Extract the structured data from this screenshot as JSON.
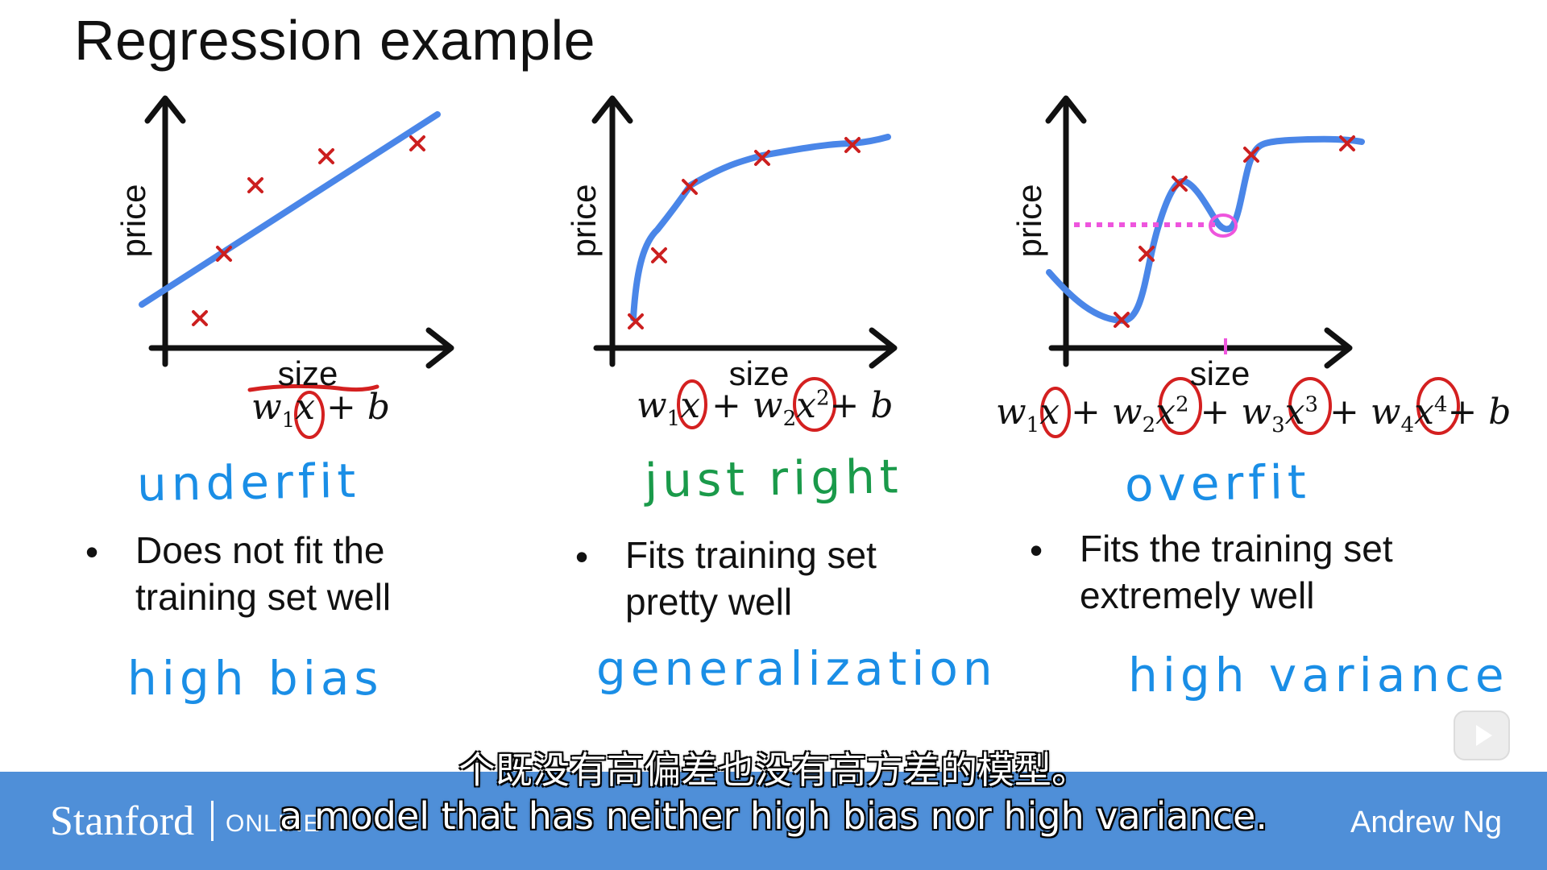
{
  "slide": {
    "title": "Regression example",
    "colors": {
      "curve": "#4a86e8",
      "marker": "#cc1f1f",
      "circle": "#d42020",
      "underfit": "#1a8ee6",
      "just_right": "#1a9a4a",
      "overfit": "#1a8ee6",
      "pink": "#ee55dd",
      "footer": "#4f8fd8"
    },
    "panels": [
      {
        "ylabel": "price",
        "xlabel": "size",
        "formula": {
          "parts": [
            "w",
            "1",
            "x",
            "+ b"
          ]
        },
        "verdict": "underfit",
        "bullet_line1": "Does not fit the",
        "bullet_line2": "training set well",
        "note": "high  bias"
      },
      {
        "ylabel": "price",
        "xlabel": "size",
        "formula": {
          "w1": "w",
          "s1": "1",
          "x1": "x",
          "plus1": "+",
          "w2": "w",
          "s2": "2",
          "x2": "x",
          "p2": "2",
          "tail": "+ b"
        },
        "verdict": "just right",
        "bullet_line1": "Fits training set",
        "bullet_line2": "pretty well",
        "note": "generalization"
      },
      {
        "ylabel": "price",
        "xlabel": "size",
        "formula": {
          "w": "w",
          "s1": "1",
          "s2": "2",
          "s3": "3",
          "s4": "4",
          "x": "x",
          "p2": "2",
          "p3": "3",
          "p4": "4",
          "plus": "+",
          "tail": "+ b"
        },
        "verdict": "overfit",
        "bullet_line1": "Fits the training set",
        "bullet_line2": "extremely well",
        "note": "high  variance"
      }
    ],
    "bullet_symbol": "•"
  },
  "subtitles": {
    "chinese": "个既没有高偏差也没有高方差的模型。",
    "english": "a model that has neither high bias nor high variance."
  },
  "footer": {
    "brand": "Stanford",
    "brand_sub": "ONLINE",
    "instructor": "Andrew Ng"
  },
  "player": {
    "play_icon": "play-icon"
  }
}
